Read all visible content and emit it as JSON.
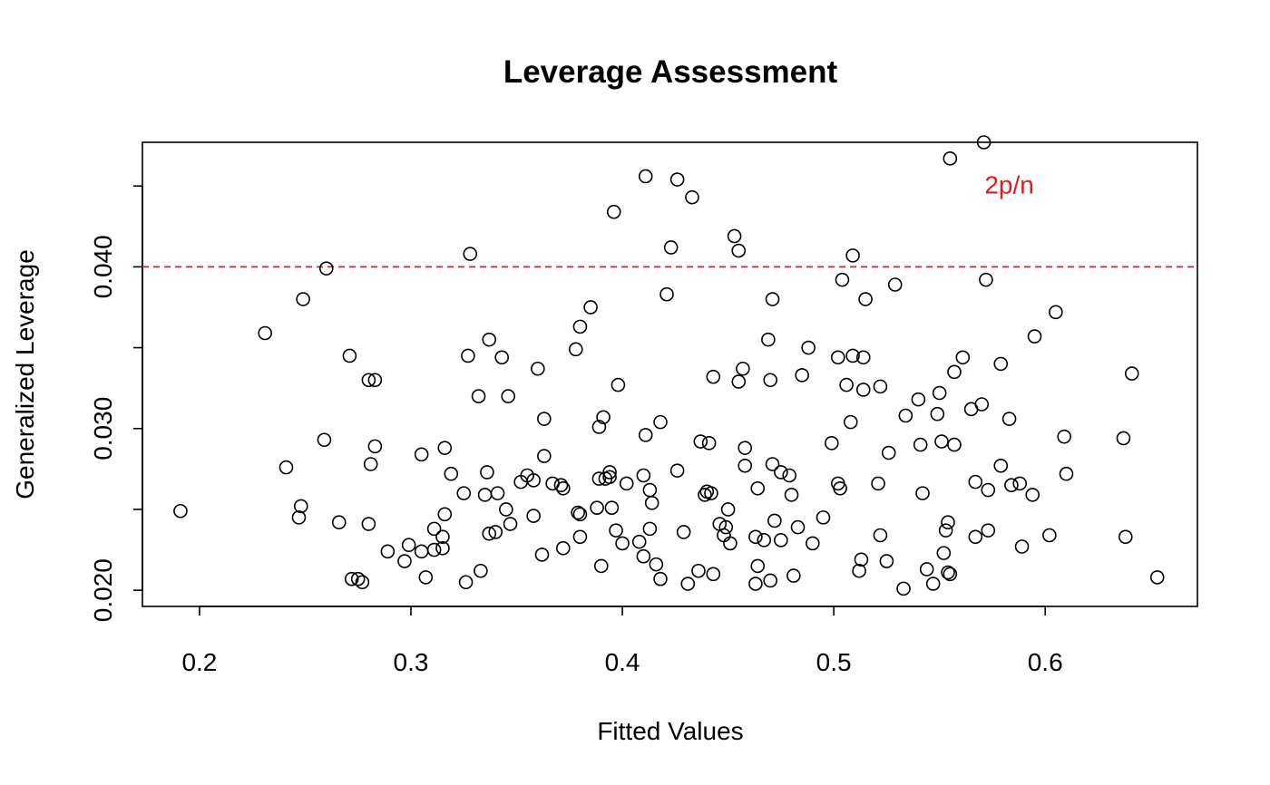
{
  "chart_data": {
    "type": "scatter",
    "title": "Leverage Assessment",
    "xlabel": "Fitted Values",
    "ylabel": "Generalized Leverage",
    "xlim": [
      0.173,
      0.672
    ],
    "ylim": [
      0.019,
      0.0477
    ],
    "x_ticks": [
      0.2,
      0.3,
      0.4,
      0.5,
      0.6
    ],
    "x_tick_labels": [
      "0.2",
      "0.3",
      "0.4",
      "0.5",
      "0.6"
    ],
    "y_ticks": [
      0.02,
      0.025,
      0.03,
      0.035,
      0.04,
      0.045
    ],
    "y_tick_labels": [
      "0.020",
      "",
      "0.030",
      "",
      "0.040",
      ""
    ],
    "grid": false,
    "reference_line": {
      "y": 0.04,
      "style": "dashed",
      "color": "#e41a1c"
    },
    "annotation": {
      "text": "2p/n",
      "x": 0.583,
      "y": 0.0451,
      "color": "#e41a1c"
    },
    "points": [
      [
        0.191,
        0.0249
      ],
      [
        0.231,
        0.0359
      ],
      [
        0.241,
        0.0276
      ],
      [
        0.247,
        0.0245
      ],
      [
        0.248,
        0.0252
      ],
      [
        0.249,
        0.038
      ],
      [
        0.259,
        0.0293
      ],
      [
        0.26,
        0.0399
      ],
      [
        0.266,
        0.0242
      ],
      [
        0.271,
        0.0345
      ],
      [
        0.272,
        0.0207
      ],
      [
        0.275,
        0.0207
      ],
      [
        0.277,
        0.0205
      ],
      [
        0.28,
        0.033
      ],
      [
        0.28,
        0.0241
      ],
      [
        0.281,
        0.0278
      ],
      [
        0.283,
        0.033
      ],
      [
        0.283,
        0.0289
      ],
      [
        0.289,
        0.0224
      ],
      [
        0.297,
        0.0218
      ],
      [
        0.299,
        0.0228
      ],
      [
        0.305,
        0.0284
      ],
      [
        0.305,
        0.0224
      ],
      [
        0.307,
        0.0208
      ],
      [
        0.311,
        0.0238
      ],
      [
        0.311,
        0.0225
      ],
      [
        0.315,
        0.0233
      ],
      [
        0.315,
        0.0226
      ],
      [
        0.316,
        0.0288
      ],
      [
        0.316,
        0.0247
      ],
      [
        0.319,
        0.0272
      ],
      [
        0.325,
        0.026
      ],
      [
        0.326,
        0.0205
      ],
      [
        0.327,
        0.0345
      ],
      [
        0.328,
        0.0408
      ],
      [
        0.332,
        0.032
      ],
      [
        0.333,
        0.0212
      ],
      [
        0.335,
        0.0259
      ],
      [
        0.336,
        0.0273
      ],
      [
        0.337,
        0.0355
      ],
      [
        0.337,
        0.0235
      ],
      [
        0.34,
        0.0236
      ],
      [
        0.341,
        0.026
      ],
      [
        0.343,
        0.0344
      ],
      [
        0.345,
        0.025
      ],
      [
        0.346,
        0.032
      ],
      [
        0.347,
        0.0241
      ],
      [
        0.352,
        0.0267
      ],
      [
        0.355,
        0.0271
      ],
      [
        0.358,
        0.0268
      ],
      [
        0.358,
        0.0246
      ],
      [
        0.36,
        0.0337
      ],
      [
        0.362,
        0.0222
      ],
      [
        0.363,
        0.0306
      ],
      [
        0.363,
        0.0283
      ],
      [
        0.367,
        0.0266
      ],
      [
        0.371,
        0.0265
      ],
      [
        0.372,
        0.0263
      ],
      [
        0.372,
        0.0226
      ],
      [
        0.378,
        0.0349
      ],
      [
        0.379,
        0.0248
      ],
      [
        0.38,
        0.0363
      ],
      [
        0.38,
        0.0247
      ],
      [
        0.38,
        0.0233
      ],
      [
        0.385,
        0.0375
      ],
      [
        0.388,
        0.0251
      ],
      [
        0.389,
        0.0301
      ],
      [
        0.389,
        0.0269
      ],
      [
        0.39,
        0.0215
      ],
      [
        0.391,
        0.0307
      ],
      [
        0.392,
        0.0269
      ],
      [
        0.394,
        0.0273
      ],
      [
        0.394,
        0.027
      ],
      [
        0.395,
        0.0251
      ],
      [
        0.396,
        0.0434
      ],
      [
        0.397,
        0.0237
      ],
      [
        0.398,
        0.0327
      ],
      [
        0.4,
        0.0229
      ],
      [
        0.402,
        0.0266
      ],
      [
        0.408,
        0.023
      ],
      [
        0.41,
        0.0221
      ],
      [
        0.41,
        0.0271
      ],
      [
        0.411,
        0.0456
      ],
      [
        0.411,
        0.0296
      ],
      [
        0.413,
        0.0262
      ],
      [
        0.413,
        0.0238
      ],
      [
        0.414,
        0.0254
      ],
      [
        0.416,
        0.0216
      ],
      [
        0.418,
        0.0304
      ],
      [
        0.418,
        0.0207
      ],
      [
        0.421,
        0.0383
      ],
      [
        0.423,
        0.0412
      ],
      [
        0.426,
        0.0454
      ],
      [
        0.426,
        0.0274
      ],
      [
        0.429,
        0.0236
      ],
      [
        0.431,
        0.0204
      ],
      [
        0.433,
        0.0443
      ],
      [
        0.436,
        0.0212
      ],
      [
        0.437,
        0.0292
      ],
      [
        0.439,
        0.0259
      ],
      [
        0.44,
        0.0261
      ],
      [
        0.441,
        0.0291
      ],
      [
        0.442,
        0.026
      ],
      [
        0.443,
        0.0332
      ],
      [
        0.443,
        0.021
      ],
      [
        0.446,
        0.0241
      ],
      [
        0.448,
        0.0234
      ],
      [
        0.449,
        0.0239
      ],
      [
        0.45,
        0.025
      ],
      [
        0.451,
        0.0229
      ],
      [
        0.453,
        0.0419
      ],
      [
        0.455,
        0.0329
      ],
      [
        0.455,
        0.041
      ],
      [
        0.457,
        0.0337
      ],
      [
        0.458,
        0.0288
      ],
      [
        0.458,
        0.0277
      ],
      [
        0.463,
        0.0233
      ],
      [
        0.463,
        0.0204
      ],
      [
        0.464,
        0.0215
      ],
      [
        0.464,
        0.0263
      ],
      [
        0.467,
        0.0231
      ],
      [
        0.469,
        0.0355
      ],
      [
        0.47,
        0.033
      ],
      [
        0.47,
        0.0206
      ],
      [
        0.471,
        0.038
      ],
      [
        0.471,
        0.0278
      ],
      [
        0.472,
        0.0243
      ],
      [
        0.475,
        0.0273
      ],
      [
        0.475,
        0.0231
      ],
      [
        0.479,
        0.0271
      ],
      [
        0.48,
        0.0259
      ],
      [
        0.481,
        0.0209
      ],
      [
        0.483,
        0.0239
      ],
      [
        0.485,
        0.0333
      ],
      [
        0.488,
        0.035
      ],
      [
        0.49,
        0.0229
      ],
      [
        0.495,
        0.0245
      ],
      [
        0.499,
        0.0291
      ],
      [
        0.502,
        0.0266
      ],
      [
        0.502,
        0.0344
      ],
      [
        0.503,
        0.0263
      ],
      [
        0.504,
        0.0392
      ],
      [
        0.506,
        0.0327
      ],
      [
        0.508,
        0.0304
      ],
      [
        0.509,
        0.0407
      ],
      [
        0.509,
        0.0345
      ],
      [
        0.512,
        0.0212
      ],
      [
        0.513,
        0.0219
      ],
      [
        0.514,
        0.0324
      ],
      [
        0.514,
        0.0344
      ],
      [
        0.515,
        0.038
      ],
      [
        0.521,
        0.0266
      ],
      [
        0.522,
        0.0326
      ],
      [
        0.522,
        0.0234
      ],
      [
        0.525,
        0.0218
      ],
      [
        0.526,
        0.0285
      ],
      [
        0.529,
        0.0389
      ],
      [
        0.533,
        0.0201
      ],
      [
        0.534,
        0.0308
      ],
      [
        0.54,
        0.0318
      ],
      [
        0.541,
        0.029
      ],
      [
        0.542,
        0.026
      ],
      [
        0.544,
        0.0213
      ],
      [
        0.547,
        0.0204
      ],
      [
        0.549,
        0.0309
      ],
      [
        0.55,
        0.0322
      ],
      [
        0.551,
        0.0292
      ],
      [
        0.552,
        0.0223
      ],
      [
        0.553,
        0.0237
      ],
      [
        0.554,
        0.0211
      ],
      [
        0.554,
        0.0242
      ],
      [
        0.555,
        0.021
      ],
      [
        0.555,
        0.0467
      ],
      [
        0.557,
        0.0335
      ],
      [
        0.557,
        0.029
      ],
      [
        0.561,
        0.0344
      ],
      [
        0.565,
        0.0312
      ],
      [
        0.567,
        0.0233
      ],
      [
        0.567,
        0.0267
      ],
      [
        0.57,
        0.0315
      ],
      [
        0.571,
        0.0477
      ],
      [
        0.572,
        0.0392
      ],
      [
        0.573,
        0.0237
      ],
      [
        0.573,
        0.0262
      ],
      [
        0.579,
        0.034
      ],
      [
        0.579,
        0.0277
      ],
      [
        0.583,
        0.0306
      ],
      [
        0.584,
        0.0265
      ],
      [
        0.588,
        0.0266
      ],
      [
        0.589,
        0.0227
      ],
      [
        0.594,
        0.0259
      ],
      [
        0.595,
        0.0357
      ],
      [
        0.602,
        0.0234
      ],
      [
        0.605,
        0.0372
      ],
      [
        0.609,
        0.0295
      ],
      [
        0.61,
        0.0272
      ],
      [
        0.637,
        0.0294
      ],
      [
        0.638,
        0.0233
      ],
      [
        0.641,
        0.0334
      ],
      [
        0.653,
        0.0208
      ]
    ]
  }
}
